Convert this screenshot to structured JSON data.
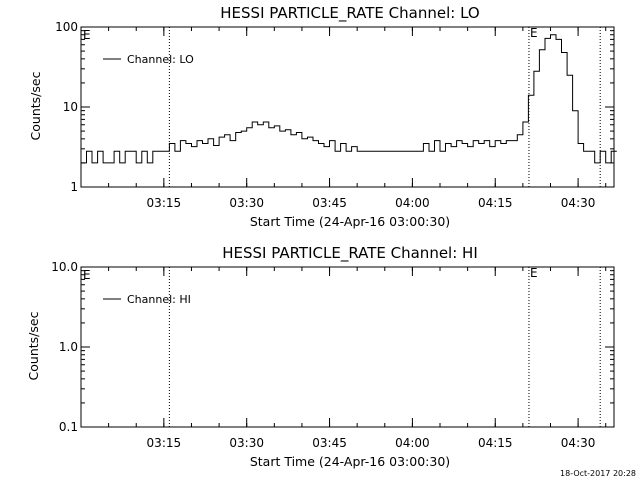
{
  "chart_data": [
    {
      "type": "line",
      "title": "HESSI PARTICLE_RATE Channel: LO",
      "xlabel": "Start Time (24-Apr-16 03:00:30)",
      "ylabel": "Counts/sec",
      "yscale": "log",
      "ylim": [
        1,
        100
      ],
      "xlim_min": [
        0.5,
        97
      ],
      "y_ticks": [
        "1",
        "10",
        "100"
      ],
      "x_ticks": [
        {
          "t": 15.5,
          "label": "03:15"
        },
        {
          "t": 30.5,
          "label": "03:30"
        },
        {
          "t": 45.5,
          "label": "03:45"
        },
        {
          "t": 60.5,
          "label": "04:00"
        },
        {
          "t": 75.5,
          "label": "04:15"
        },
        {
          "t": 90.5,
          "label": "04:30"
        }
      ],
      "event_lines": [
        {
          "t": 16.5,
          "label": ""
        },
        {
          "t": 81.6,
          "label": "E"
        },
        {
          "t": 94.5,
          "label": ""
        }
      ],
      "corner_mark": "E",
      "grid": false,
      "legend_position": "top-left",
      "series": [
        {
          "name": "Channel: LO",
          "x": [
            1,
            2,
            3,
            4,
            5,
            6,
            7,
            8,
            9,
            10,
            11,
            12,
            13,
            14,
            15,
            16,
            17,
            18,
            19,
            20,
            21,
            22,
            23,
            24,
            25,
            26,
            27,
            28,
            29,
            30,
            31,
            32,
            33,
            34,
            35,
            36,
            37,
            38,
            39,
            40,
            41,
            42,
            43,
            44,
            45,
            46,
            47,
            48,
            49,
            50,
            51,
            52,
            53,
            54,
            55,
            56,
            57,
            58,
            59,
            60,
            61,
            62,
            63,
            64,
            65,
            66,
            67,
            68,
            69,
            70,
            71,
            72,
            73,
            74,
            75,
            76,
            77,
            78,
            79,
            80,
            81,
            82,
            83,
            84,
            85,
            86,
            87,
            88,
            89,
            90,
            91,
            92,
            93,
            94,
            95,
            96,
            97
          ],
          "values": [
            2,
            2.8,
            2,
            2.8,
            2,
            2,
            2.8,
            2,
            2.8,
            2.8,
            2,
            2.8,
            2,
            2.8,
            2.8,
            2.8,
            3.5,
            2.8,
            3.8,
            3.5,
            3.2,
            3.8,
            3.5,
            4,
            3.3,
            4.2,
            4.5,
            3.8,
            4.8,
            5,
            5.5,
            6.5,
            6,
            6.5,
            5.5,
            5.8,
            5,
            5.2,
            4.5,
            4.8,
            4,
            4.2,
            3.8,
            3.5,
            3.2,
            3.8,
            2.8,
            3.5,
            2.8,
            3.2,
            2.8,
            2.8,
            2.8,
            2.8,
            2.8,
            2.8,
            2.8,
            2.8,
            2.8,
            2.8,
            2.8,
            2.8,
            3.5,
            2.8,
            3.8,
            2.8,
            3.5,
            3.2,
            3.8,
            3.5,
            3.2,
            3.8,
            3.5,
            3.8,
            3.2,
            3.8,
            3.5,
            3.8,
            3.8,
            4.5,
            6.5,
            14,
            28,
            52,
            72,
            80,
            70,
            48,
            25,
            9,
            3.5,
            2.8,
            2.8,
            2,
            2.8,
            2,
            2.8
          ]
        }
      ]
    },
    {
      "type": "line",
      "title": "HESSI PARTICLE_RATE Channel: HI",
      "xlabel": "Start Time (24-Apr-16 03:00:30)",
      "ylabel": "Counts/sec",
      "yscale": "log",
      "ylim": [
        0.1,
        10
      ],
      "xlim_min": [
        0.5,
        97
      ],
      "y_ticks": [
        "0.1",
        "1.0",
        "10.0"
      ],
      "x_ticks": [
        {
          "t": 15.5,
          "label": "03:15"
        },
        {
          "t": 30.5,
          "label": "03:30"
        },
        {
          "t": 45.5,
          "label": "03:45"
        },
        {
          "t": 60.5,
          "label": "04:00"
        },
        {
          "t": 75.5,
          "label": "04:15"
        },
        {
          "t": 90.5,
          "label": "04:30"
        }
      ],
      "event_lines": [
        {
          "t": 16.5,
          "label": ""
        },
        {
          "t": 81.6,
          "label": "E"
        },
        {
          "t": 94.5,
          "label": ""
        }
      ],
      "corner_mark": "E",
      "grid": false,
      "legend_position": "top-left",
      "series": [
        {
          "name": "Channel: HI",
          "x": [],
          "values": []
        }
      ]
    }
  ],
  "timestamp": "18-Oct-2017 20:28"
}
